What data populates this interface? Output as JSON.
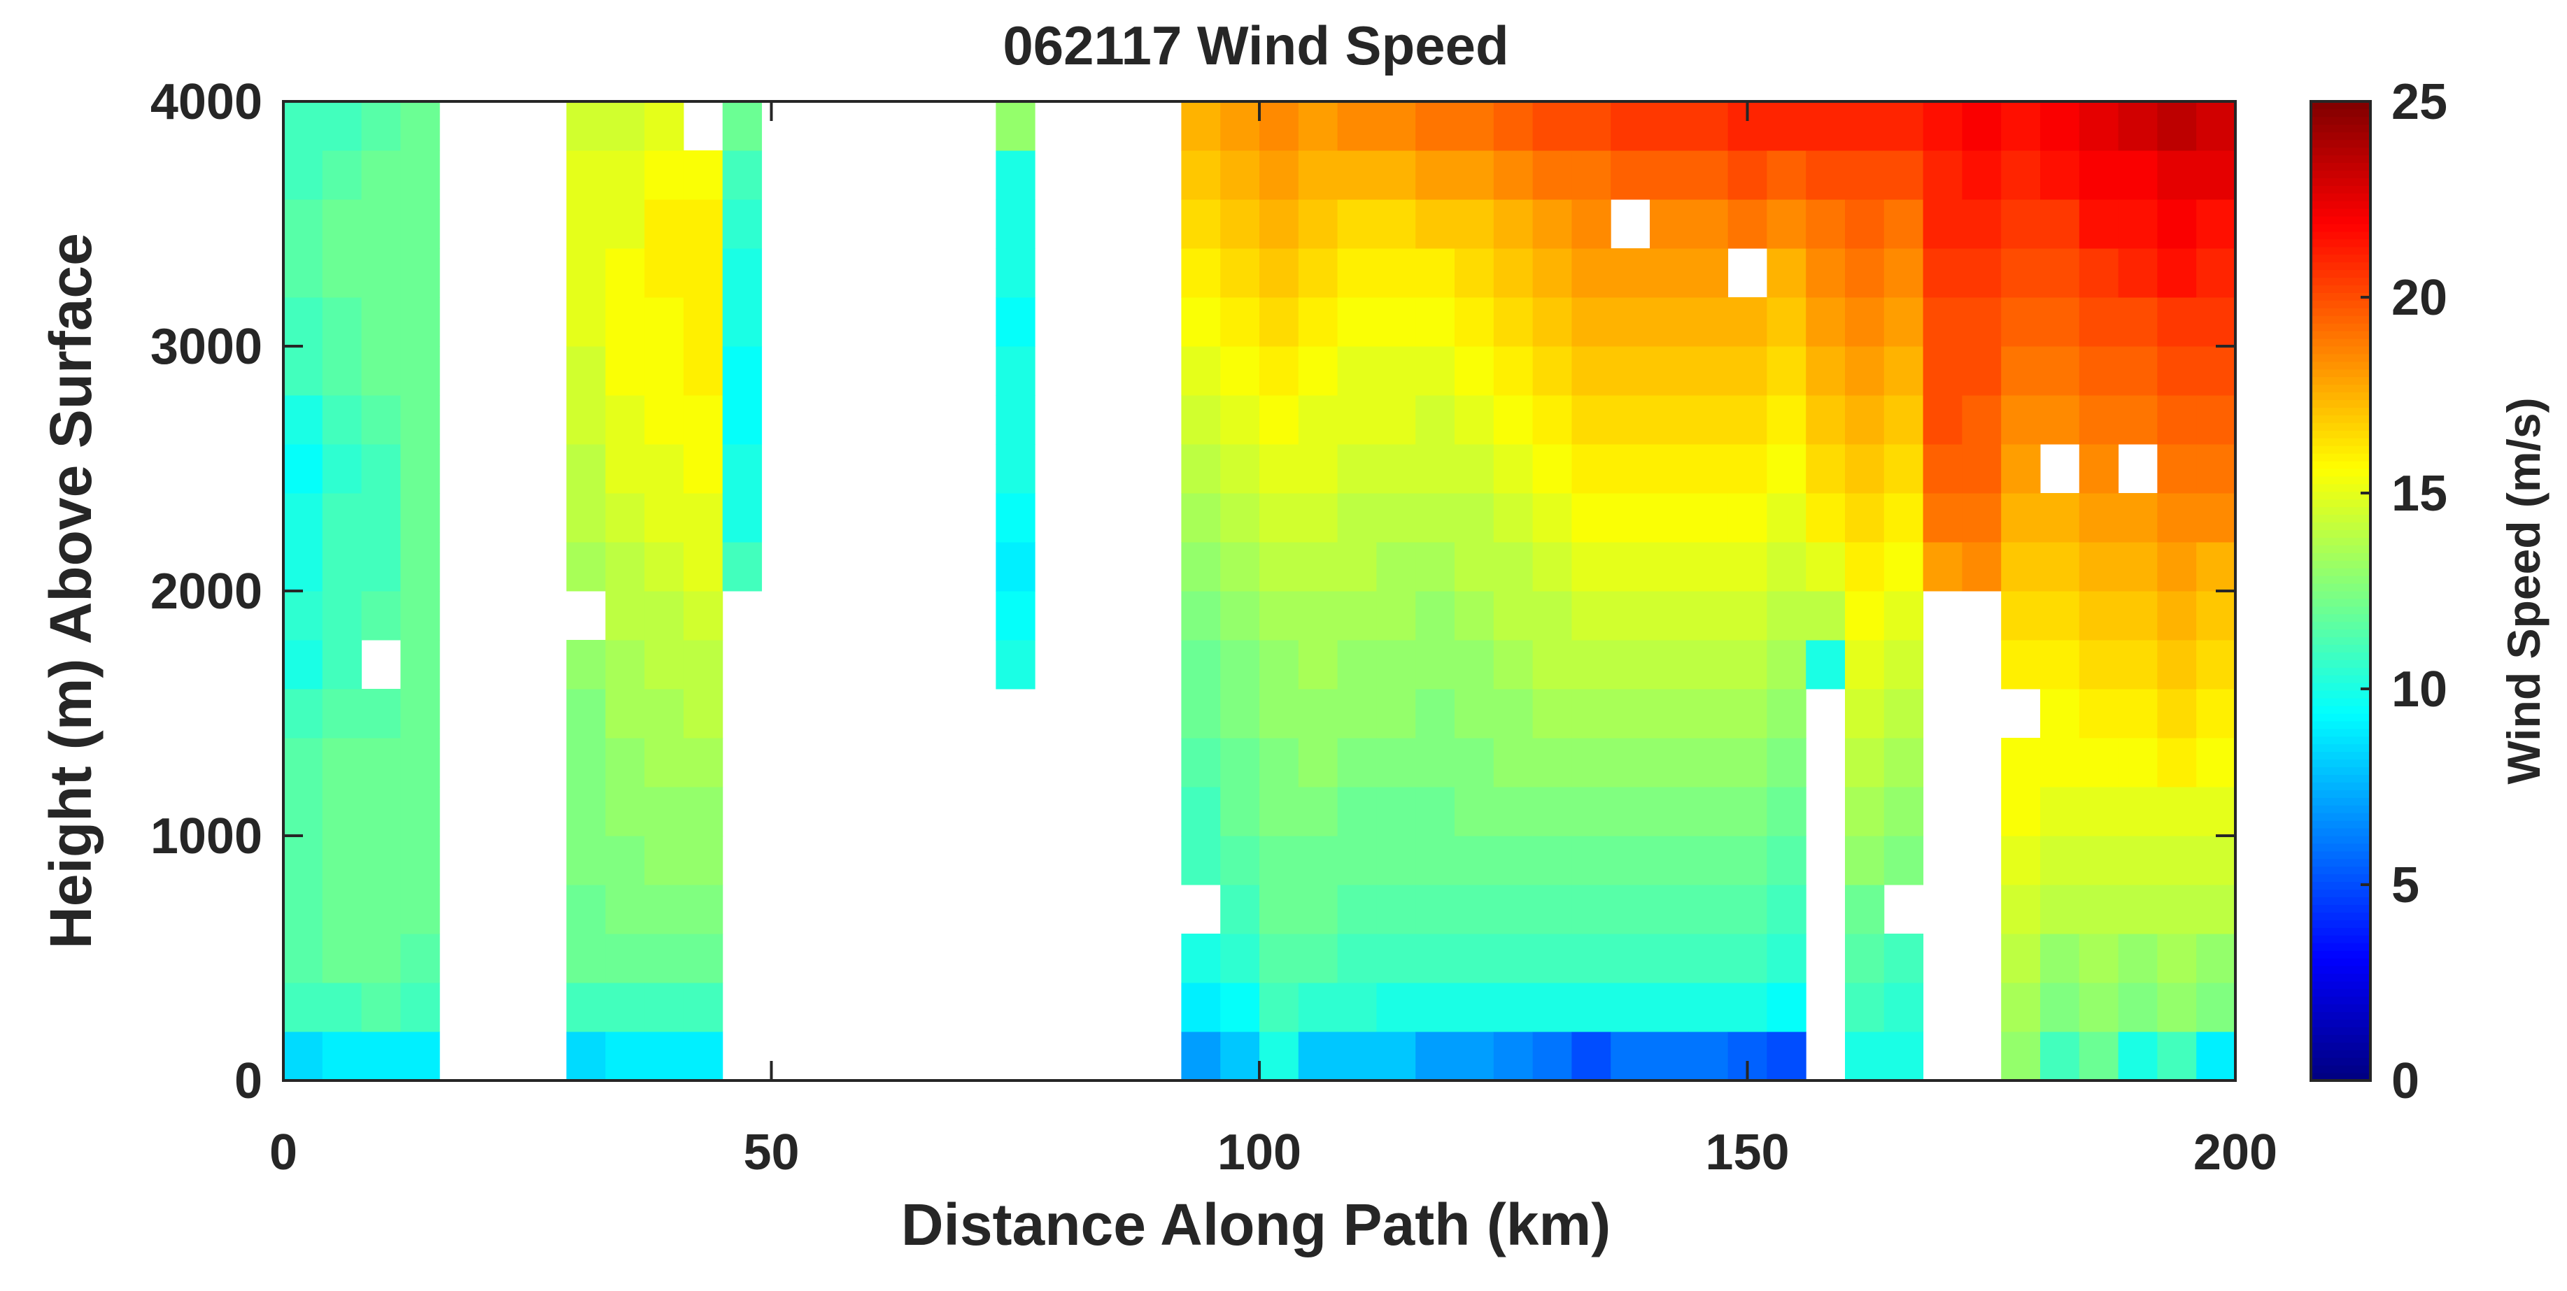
{
  "chart_data": {
    "type": "heatmap",
    "title": "062117 Wind Speed",
    "xlabel": "Distance Along Path (km)",
    "ylabel": "Height (m) Above Surface",
    "colorbar_label": "Wind Speed (m/s)",
    "xlim": [
      0,
      200
    ],
    "ylim": [
      0,
      4000
    ],
    "clim": [
      0,
      25
    ],
    "colormap": "jet",
    "xticks": [
      0,
      50,
      100,
      150,
      200
    ],
    "yticks": [
      0,
      1000,
      2000,
      3000,
      4000
    ],
    "cticks": [
      0,
      5,
      10,
      15,
      20,
      25
    ],
    "xtick_labels": [
      "0",
      "50",
      "100",
      "150",
      "200"
    ],
    "ytick_labels": [
      "0",
      "1000",
      "2000",
      "3000",
      "4000"
    ],
    "ctick_labels": [
      "0",
      "5",
      "10",
      "15",
      "20",
      "25"
    ],
    "grid": false,
    "x": [
      2,
      6,
      10,
      14,
      31,
      35,
      39,
      43,
      47,
      51,
      75,
      94,
      98,
      102,
      106,
      110,
      114,
      118,
      122,
      126,
      130,
      134,
      138,
      142,
      146,
      150,
      154,
      158,
      162,
      166,
      170,
      174,
      178,
      182,
      186,
      190,
      194,
      198
    ],
    "y": [
      100,
      300,
      500,
      700,
      900,
      1100,
      1300,
      1500,
      1700,
      1900,
      2100,
      2300,
      2500,
      2700,
      2900,
      3100,
      3300,
      3500,
      3700,
      3900
    ],
    "z": [
      [
        8.5,
        11,
        11.5,
        11.5,
        11.5,
        11.5,
        11.5,
        11,
        10,
        10.5,
        10,
        10,
        9.5,
        10,
        11,
        11,
        11.5,
        11.5,
        11,
        11
      ],
      [
        9,
        11,
        12,
        12,
        12,
        12,
        12,
        11.5,
        11,
        11,
        11,
        11,
        10.5,
        11,
        11.5,
        11.5,
        12,
        12,
        11.5,
        11
      ],
      [
        9,
        11.5,
        12,
        12,
        12,
        12,
        12,
        11.5,
        null,
        11.5,
        11,
        11,
        11,
        11.5,
        12,
        12,
        12,
        12,
        12,
        11.5
      ],
      [
        9,
        11,
        11.5,
        12,
        12,
        12,
        12,
        12,
        12,
        12,
        12,
        12,
        12,
        12,
        12,
        12,
        12,
        12,
        12,
        12
      ],
      [
        8.5,
        11,
        12,
        12,
        12.5,
        12.5,
        12.5,
        12.5,
        13,
        null,
        13.5,
        14,
        14,
        14.5,
        14.5,
        15,
        15,
        15,
        15,
        14.5
      ],
      [
        9,
        11,
        12,
        12.5,
        12.5,
        13,
        13,
        13.5,
        13.5,
        14,
        14,
        14.5,
        15,
        15,
        15.5,
        15.5,
        15.5,
        15,
        15,
        14.5
      ],
      [
        9,
        11,
        12,
        12.5,
        13,
        13,
        13.5,
        13.5,
        14,
        14,
        14.5,
        15,
        15,
        15.5,
        15.5,
        15.5,
        16,
        16,
        15.5,
        15
      ],
      [
        9,
        11,
        12,
        12.5,
        13,
        13,
        13.5,
        14,
        14,
        14.5,
        15,
        15,
        15.5,
        15.5,
        16,
        16,
        16,
        16,
        15.5,
        null
      ],
      [
        null,
        null,
        null,
        null,
        null,
        null,
        null,
        null,
        null,
        null,
        11,
        10,
        10,
        9.5,
        9.5,
        10,
        10,
        10.5,
        11,
        12
      ],
      [
        null,
        null,
        null,
        null,
        null,
        null,
        null,
        null,
        null,
        null,
        null,
        null,
        null,
        null,
        null,
        null,
        null,
        null,
        null,
        null
      ],
      [
        null,
        null,
        null,
        null,
        null,
        null,
        null,
        null,
        10,
        9.5,
        9,
        9.5,
        10,
        10,
        10,
        9.5,
        10,
        10,
        10,
        13
      ],
      [
        7,
        9,
        10,
        null,
        11,
        11,
        11.5,
        12,
        12,
        12.5,
        13,
        13.5,
        14,
        14.5,
        15,
        15.5,
        16,
        16.5,
        17,
        17.5
      ],
      [
        8,
        9.5,
        10.5,
        11,
        11.5,
        12,
        12,
        12.5,
        12.5,
        13,
        13.5,
        14,
        14.5,
        15,
        15.5,
        16,
        16.5,
        17,
        17.5,
        18
      ],
      [
        10,
        11,
        11.5,
        12,
        12,
        12.5,
        12.5,
        13,
        13,
        13.5,
        14,
        14.5,
        15,
        15.5,
        16,
        16.5,
        17,
        17.5,
        18,
        18.5
      ],
      [
        8,
        10.5,
        11.5,
        12,
        12,
        12.5,
        13,
        13,
        13.5,
        13.5,
        14,
        14.5,
        15,
        15,
        15.5,
        16,
        16.5,
        17,
        17.5,
        18
      ],
      [
        8,
        10.5,
        11,
        11.5,
        12,
        12,
        12.5,
        13,
        13,
        13.5,
        14,
        14,
        14.5,
        15,
        15,
        15.5,
        16,
        16.5,
        17.5,
        18.5
      ],
      [
        8,
        10,
        11,
        11.5,
        12,
        12,
        12.5,
        13,
        13,
        13.5,
        13.5,
        14,
        14.5,
        15,
        15,
        15.5,
        16,
        16.5,
        17.5,
        18.5
      ],
      [
        7,
        10,
        11,
        11.5,
        12,
        12,
        12.5,
        12.5,
        13,
        13,
        13.5,
        14,
        14.5,
        14.5,
        15,
        15.5,
        16,
        17,
        18,
        19
      ],
      [
        7,
        10,
        11,
        11.5,
        12,
        12.5,
        12.5,
        13,
        13,
        13.5,
        14,
        14,
        14.5,
        15,
        15.5,
        16,
        16.5,
        17,
        18,
        19
      ],
      [
        6.5,
        10,
        11,
        11.5,
        12,
        12.5,
        13,
        13,
        13.5,
        14,
        14,
        14.5,
        15,
        15.5,
        16,
        16.5,
        17,
        17.5,
        18.5,
        19.5
      ],
      [
        6,
        10,
        11,
        11.5,
        12,
        12.5,
        13,
        13.5,
        14,
        14,
        14.5,
        15,
        15.5,
        16,
        16.5,
        17,
        17.5,
        18,
        19,
        20
      ],
      [
        5,
        10,
        11,
        11.5,
        12,
        12.5,
        13,
        13.5,
        14,
        14.5,
        15,
        15.5,
        16,
        16.5,
        17,
        17.5,
        18,
        18.5,
        19,
        20
      ],
      [
        6,
        10,
        11,
        11.5,
        12,
        12.5,
        13,
        13.5,
        14,
        14.5,
        15,
        15.5,
        16,
        16.5,
        17,
        17.5,
        18,
        null,
        19.5,
        20.5
      ],
      [
        6,
        10,
        11,
        11.5,
        12,
        12.5,
        13,
        13.5,
        14,
        14.5,
        15,
        15.5,
        16,
        16.5,
        17,
        17.5,
        18,
        18.5,
        19.5,
        20.5
      ],
      [
        6,
        10,
        11,
        11.5,
        12,
        12.5,
        13,
        13.5,
        14,
        14.5,
        15,
        15.5,
        16,
        16.5,
        17,
        17.5,
        18,
        18.5,
        19.5,
        20.5
      ],
      [
        5.5,
        10,
        11,
        11.5,
        12,
        12.5,
        13,
        13.5,
        14,
        14.5,
        15,
        15.5,
        16,
        16.5,
        17,
        17.5,
        null,
        19,
        20,
        21
      ],
      [
        5,
        9.5,
        10.5,
        11,
        11.5,
        12,
        12.5,
        13,
        13.5,
        14,
        14.5,
        15,
        15.5,
        16,
        16.5,
        17,
        17.5,
        18.5,
        19.5,
        21
      ],
      [
        null,
        null,
        null,
        null,
        null,
        null,
        null,
        null,
        10,
        14,
        15,
        16,
        16.5,
        17,
        17.5,
        18,
        18.5,
        19,
        20,
        21
      ],
      [
        10,
        11,
        11.5,
        12,
        13,
        13.5,
        14,
        14.5,
        15,
        15.5,
        16,
        16.5,
        17,
        17.5,
        18,
        18.5,
        19,
        19.5,
        20,
        21
      ],
      [
        10,
        10.5,
        11,
        null,
        12.5,
        13,
        13.5,
        14,
        14.5,
        15,
        15.5,
        16,
        16.5,
        17,
        17.5,
        18,
        18.5,
        19,
        20,
        21
      ],
      [
        null,
        null,
        null,
        null,
        null,
        null,
        null,
        null,
        null,
        null,
        18,
        19,
        19.5,
        20,
        20,
        20,
        20.5,
        21,
        21,
        21.5
      ],
      [
        null,
        null,
        null,
        null,
        null,
        null,
        null,
        null,
        null,
        null,
        18.5,
        19,
        19.5,
        19.5,
        20,
        20,
        20.5,
        21,
        21.5,
        22
      ],
      [
        13,
        13.5,
        14,
        14.5,
        15,
        15.5,
        15.5,
        null,
        16,
        16.5,
        17,
        17.5,
        18,
        18.5,
        19,
        19.5,
        20,
        20.5,
        21,
        21.5
      ],
      [
        11,
        12.5,
        13,
        14,
        14.5,
        15,
        15.5,
        15.5,
        16,
        16.5,
        17,
        17.5,
        null,
        18.5,
        19,
        19.5,
        20,
        20.5,
        21.5,
        22
      ],
      [
        12,
        13,
        13.5,
        14,
        14.5,
        15,
        15.5,
        16,
        16.5,
        17,
        17.5,
        18,
        18.5,
        19,
        19.5,
        20,
        20.5,
        21.5,
        22,
        22.5
      ],
      [
        10,
        12.5,
        13,
        14,
        14.5,
        15,
        15.5,
        16,
        16.5,
        17,
        17.5,
        18,
        null,
        19,
        19.5,
        20,
        21,
        21.5,
        22,
        23
      ],
      [
        11,
        13,
        13.5,
        14,
        14.5,
        15,
        16,
        16.5,
        17,
        17.5,
        18,
        18.5,
        19,
        19.5,
        20,
        20.5,
        21.5,
        22,
        22.5,
        23.5
      ],
      [
        9,
        12.5,
        13,
        14,
        14.5,
        15,
        15.5,
        16,
        16.5,
        17,
        17.5,
        18.5,
        19,
        19.5,
        20,
        20.5,
        21,
        21.5,
        22.5,
        23
      ]
    ]
  }
}
